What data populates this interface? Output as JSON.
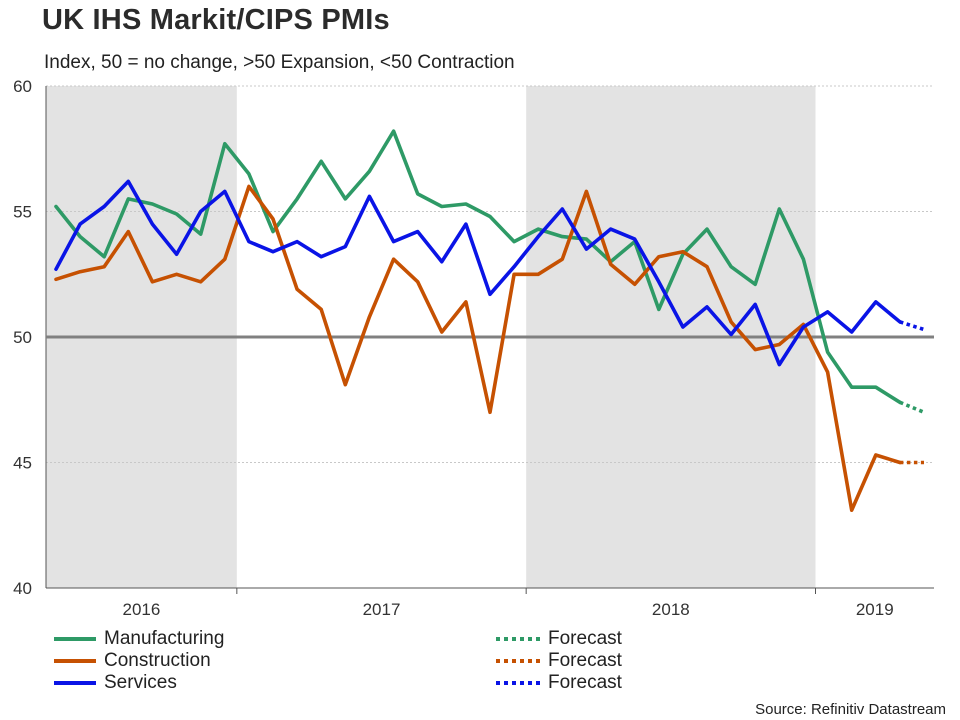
{
  "colors": {
    "manufacturing": "#2e9a66",
    "construction": "#c65102",
    "services": "#0a14e6",
    "shade": "#e3e3e3",
    "baseline": "#808080",
    "grid": "#c8c8c8"
  },
  "chart_data": {
    "type": "line",
    "title": "UK IHS Markit/CIPS PMIs",
    "subtitle": "Index, 50 = no change, >50 Expansion, <50 Contraction",
    "ylim": [
      40,
      60
    ],
    "yticks": [
      "40",
      "45",
      "50",
      "55",
      "60"
    ],
    "x_start": "2016-05",
    "years": [
      "2016",
      "2017",
      "2018",
      "2019"
    ],
    "shaded_years": [
      "2016",
      "2018"
    ],
    "reference_line": 50,
    "grid": true,
    "series": [
      {
        "name": "Manufacturing",
        "key": "manufacturing",
        "values": [
          55.2,
          54.0,
          53.2,
          55.5,
          55.3,
          54.9,
          54.1,
          57.7,
          56.5,
          54.2,
          55.5,
          57.0,
          55.5,
          56.6,
          58.2,
          55.7,
          55.2,
          55.3,
          54.8,
          53.8,
          54.3,
          54.0,
          53.9,
          53.0,
          53.8,
          51.1,
          53.3,
          54.3,
          52.8,
          52.1,
          55.1,
          53.1,
          49.4,
          48.0,
          48.0,
          47.4
        ],
        "forecast": [
          47.4,
          47.0
        ]
      },
      {
        "name": "Construction",
        "key": "construction",
        "values": [
          52.3,
          52.6,
          52.8,
          54.2,
          52.2,
          52.5,
          52.2,
          53.1,
          56.0,
          54.7,
          51.9,
          51.1,
          48.1,
          50.8,
          53.1,
          52.2,
          50.2,
          51.4,
          47.0,
          52.5,
          52.5,
          53.1,
          55.8,
          52.9,
          52.1,
          53.2,
          53.4,
          52.8,
          50.6,
          49.5,
          49.7,
          50.5,
          48.6,
          43.1,
          45.3,
          45.0
        ],
        "forecast": [
          45.0,
          45.0
        ]
      },
      {
        "name": "Services",
        "key": "services",
        "values": [
          52.7,
          54.5,
          55.2,
          56.2,
          54.5,
          53.3,
          55.0,
          55.8,
          53.8,
          53.4,
          53.8,
          53.2,
          53.6,
          55.6,
          53.8,
          54.2,
          53.0,
          54.5,
          51.7,
          52.8,
          54.0,
          55.1,
          53.5,
          54.3,
          53.9,
          52.2,
          50.4,
          51.2,
          50.1,
          51.3,
          48.9,
          50.4,
          51.0,
          50.2,
          51.4,
          50.6
        ],
        "forecast": [
          50.6,
          50.3
        ]
      }
    ]
  },
  "legend": {
    "manufacturing": "Manufacturing",
    "construction": "Construction",
    "services": "Services",
    "forecast_1": "Forecast",
    "forecast_2": "Forecast",
    "forecast_3": "Forecast"
  },
  "source": "Source: Refinitiv Datastream"
}
